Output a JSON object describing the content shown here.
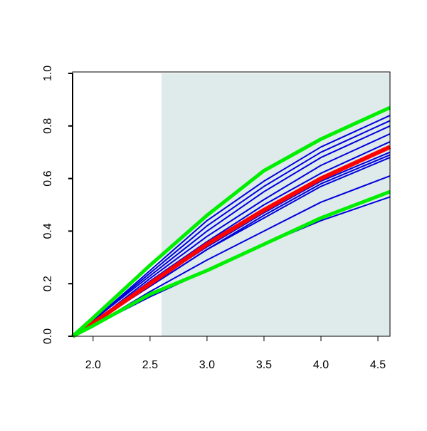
{
  "chart_data": {
    "type": "line",
    "x": [
      1.82,
      2.0,
      2.5,
      3.0,
      3.5,
      4.0,
      4.606
    ],
    "xlim": [
      1.82,
      4.606
    ],
    "ylim": [
      0,
      1.0
    ],
    "xticks": [
      {
        "value": 2.0,
        "label": "2.0"
      },
      2.5,
      {
        "value": 3.0,
        "label": "3.0"
      },
      3.5,
      {
        "value": 4.0,
        "label": "4.0"
      },
      4.5
    ],
    "yticks": [
      {
        "value": 0,
        "label": "0.0"
      },
      0.2,
      0.4,
      0.6,
      0.8,
      {
        "value": 1.0,
        "label": "1.0"
      }
    ],
    "shaded_region": {
      "xrange": [
        2.6,
        4.606
      ],
      "color": "#deebea"
    },
    "series": [
      {
        "color": "#0000dd",
        "values": [
          0,
          0.06,
          0.25,
          0.44,
          0.59,
          0.72,
          0.84
        ]
      },
      {
        "color": "#0000dd",
        "values": [
          0,
          0.06,
          0.24,
          0.42,
          0.57,
          0.7,
          0.82
        ]
      },
      {
        "color": "#0000dd",
        "values": [
          0,
          0.06,
          0.23,
          0.4,
          0.55,
          0.68,
          0.8
        ]
      },
      {
        "color": "#0000dd",
        "values": [
          0,
          0.05,
          0.22,
          0.38,
          0.52,
          0.65,
          0.77
        ]
      },
      {
        "color": "#0000dd",
        "values": [
          0,
          0.05,
          0.21,
          0.36,
          0.5,
          0.62,
          0.74
        ]
      },
      {
        "color": "#0000dd",
        "values": [
          0,
          0.05,
          0.2,
          0.34,
          0.47,
          0.59,
          0.7
        ]
      },
      {
        "color": "#0000dd",
        "values": [
          0,
          0.05,
          0.19,
          0.33,
          0.46,
          0.58,
          0.69
        ]
      },
      {
        "color": "#0000dd",
        "values": [
          0,
          0.05,
          0.19,
          0.33,
          0.45,
          0.57,
          0.68
        ]
      },
      {
        "color": "#0000dd",
        "values": [
          0,
          0.04,
          0.17,
          0.29,
          0.4,
          0.51,
          0.61
        ]
      },
      {
        "color": "#0000dd",
        "values": [
          0,
          0.04,
          0.15,
          0.25,
          0.35,
          0.44,
          0.53
        ]
      },
      {
        "color": "#ff0000",
        "values": [
          0,
          0.05,
          0.2,
          0.35,
          0.48,
          0.6,
          0.72
        ]
      },
      {
        "color": "#00ee00",
        "values": [
          0,
          0.07,
          0.27,
          0.46,
          0.63,
          0.75,
          0.87
        ]
      },
      {
        "color": "#00ee00",
        "values": [
          0,
          0.04,
          0.16,
          0.25,
          0.35,
          0.45,
          0.55
        ]
      }
    ]
  }
}
